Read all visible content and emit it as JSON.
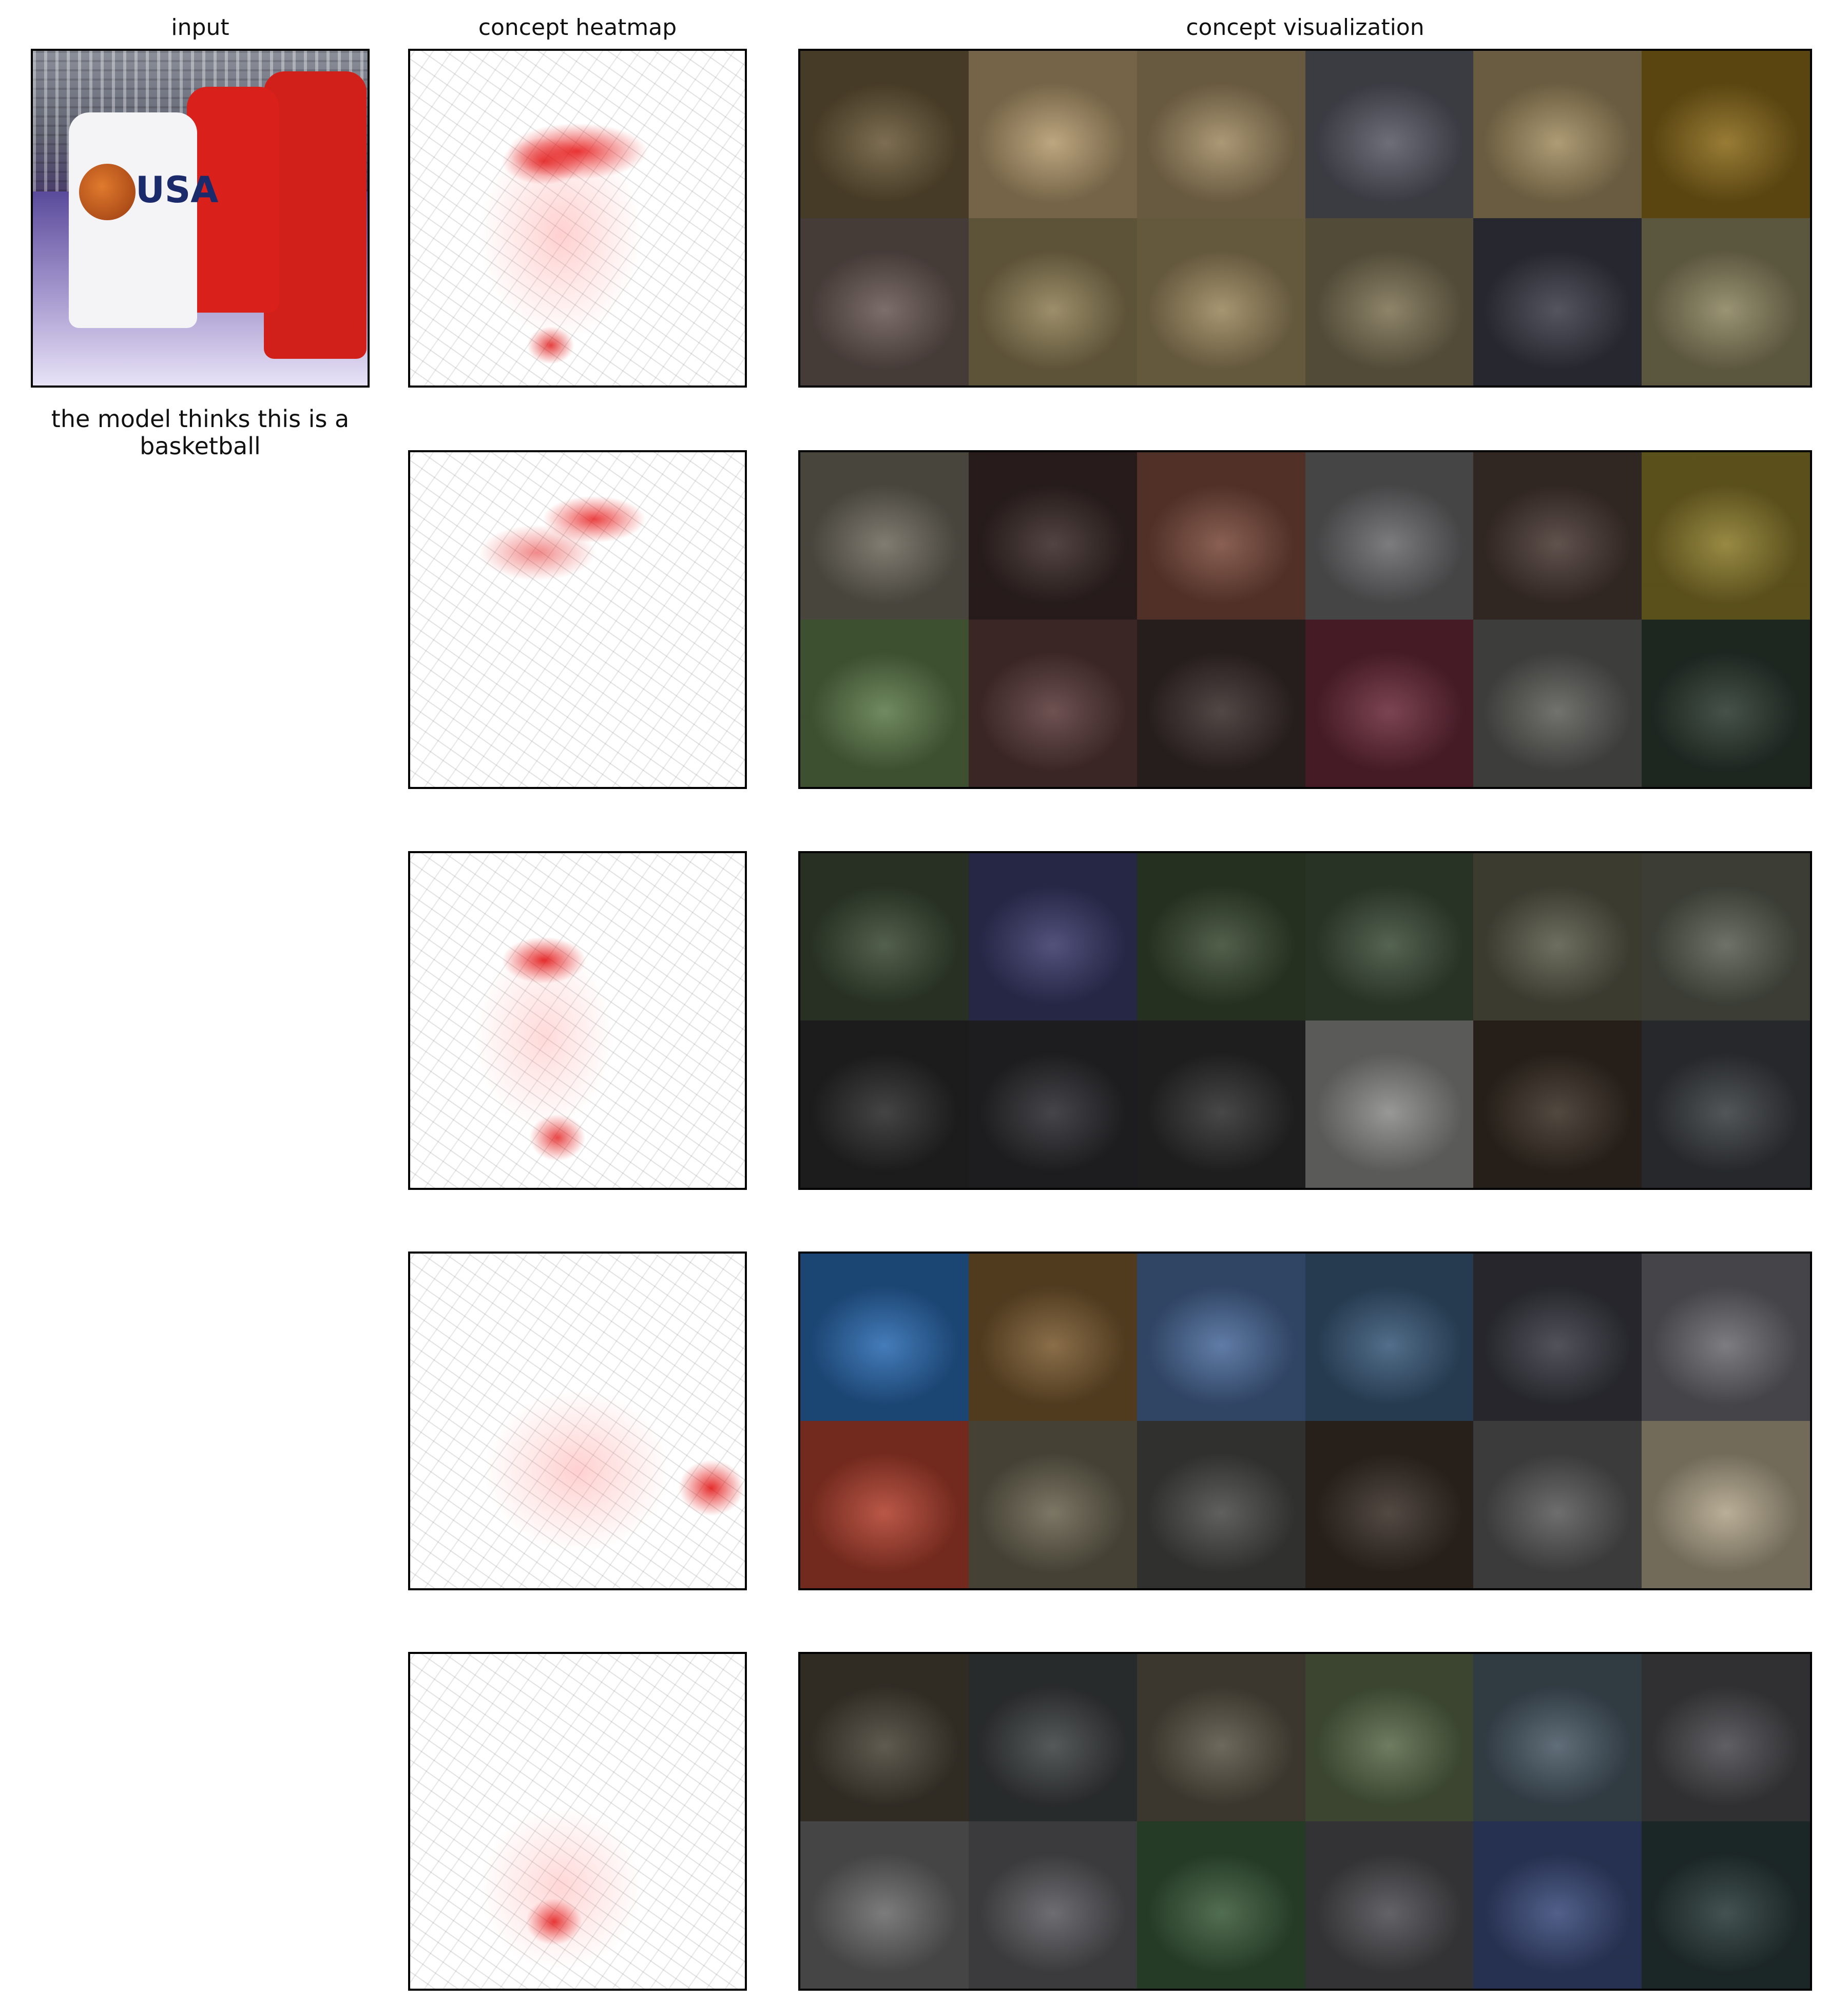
{
  "headers": {
    "input": "input",
    "heatmap": "concept heatmap",
    "visualization": "concept visualization"
  },
  "prediction": {
    "caption": "the model thinks this is a basketball"
  },
  "input_image": {
    "jersey_text": "USA"
  },
  "concept_rows": [
    {
      "heatmap_icon": "red-edge-heatmap-icon",
      "tiles": [
        "#6b5a3a",
        "#b49a6e",
        "#a08a62",
        "#5a5a66",
        "#a38e62",
        "#8a6a1a",
        "#6a5a55",
        "#8f7f56",
        "#9a875d",
        "#7e7355",
        "#3c3d48",
        "#8c8560"
      ]
    },
    {
      "heatmap_icon": "red-edge-heatmap-icon",
      "tiles": [
        "#6f6a5e",
        "#3a2a28",
        "#7a4a3c",
        "#6a6a6c",
        "#4a3a34",
        "#8a7a2a",
        "#5d7a4a",
        "#5a3a3a",
        "#3a2e2c",
        "#6a2a3a",
        "#5e5e5a",
        "#2c3a30"
      ]
    },
    {
      "heatmap_icon": "red-edge-heatmap-icon",
      "tiles": [
        "#3c4a35",
        "#3a3a6a",
        "#3a4a32",
        "#3e4e3a",
        "#5a5a4a",
        "#5a5e52",
        "#2a2a2a",
        "#2c2c30",
        "#2e2e2e",
        "#8a8a88",
        "#3a3026",
        "#3a3e42"
      ]
    },
    {
      "heatmap_icon": "red-edge-heatmap-icon",
      "tiles": [
        "#2a6ab0",
        "#7a5a30",
        "#4a6a9a",
        "#3a5a7a",
        "#3a3a44",
        "#6a6a70",
        "#b0402e",
        "#6a6450",
        "#4a4a48",
        "#3a3028",
        "#5a5a5a",
        "#b0a48a"
      ]
    },
    {
      "heatmap_icon": "red-edge-heatmap-icon",
      "tiles": [
        "#4a4438",
        "#3e4242",
        "#5a5446",
        "#5a6a4a",
        "#4a5a66",
        "#4a4a4e",
        "#6a6a6a",
        "#5a5a5e",
        "#3a5a3a",
        "#4e4e52",
        "#3a4a7a",
        "#2a3a3a"
      ]
    }
  ]
}
